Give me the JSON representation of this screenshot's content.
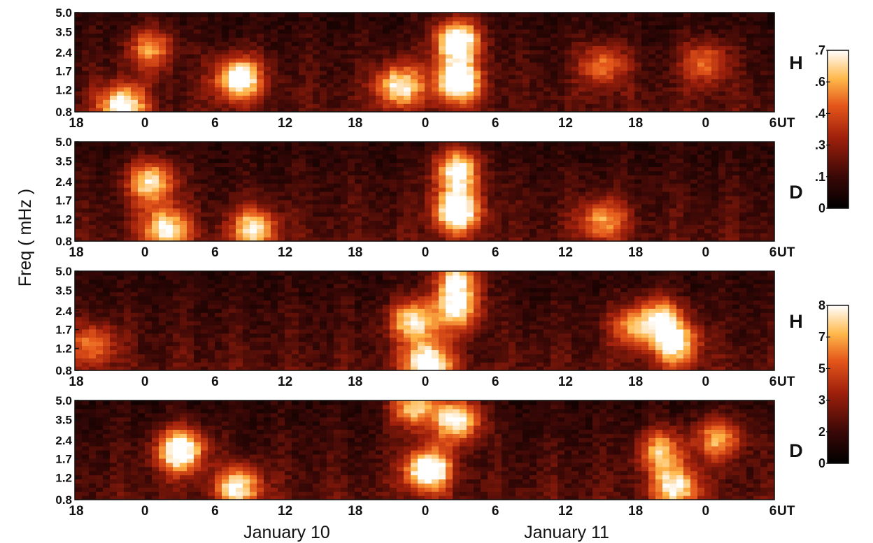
{
  "chart_data": [
    {
      "type": "heatmap",
      "component": "H",
      "x_ticks": [
        "18",
        "0",
        "6",
        "12",
        "18",
        "0",
        "6",
        "12",
        "18",
        "0",
        "6"
      ],
      "x_unit": "UT",
      "y_ticks": [
        "0.8",
        "1.2",
        "1.7",
        "2.4",
        "3.5",
        "5.0"
      ],
      "colorbar": [
        "0",
        ".1",
        ".3",
        ".4",
        ".6",
        ".7"
      ],
      "hotspots": [
        {
          "t": 3,
          "f": 0.9,
          "v": 0.6
        },
        {
          "t": 11,
          "f": 1.5,
          "v": 0.65
        },
        {
          "t": 26,
          "f": 1.4,
          "v": 0.7
        },
        {
          "t": 26,
          "f": 3.0,
          "v": 0.7
        },
        {
          "t": 22,
          "f": 1.3,
          "v": 0.55
        },
        {
          "t": 5,
          "f": 2.6,
          "v": 0.4
        },
        {
          "t": 36,
          "f": 1.9,
          "v": 0.35
        },
        {
          "t": 43,
          "f": 2.0,
          "v": 0.35
        }
      ]
    },
    {
      "type": "heatmap",
      "component": "D",
      "x_ticks": [
        "18",
        "0",
        "6",
        "12",
        "18",
        "0",
        "6",
        "12",
        "18",
        "0",
        "6"
      ],
      "x_unit": "UT",
      "y_ticks": [
        "0.8",
        "1.2",
        "1.7",
        "2.4",
        "3.5",
        "5.0"
      ],
      "colorbar": [
        "0",
        ".1",
        ".3",
        ".4",
        ".6",
        ".7"
      ],
      "hotspots": [
        {
          "t": 5,
          "f": 2.4,
          "v": 0.55
        },
        {
          "t": 6,
          "f": 1.0,
          "v": 0.55
        },
        {
          "t": 12,
          "f": 1.0,
          "v": 0.5
        },
        {
          "t": 26,
          "f": 1.4,
          "v": 0.7
        },
        {
          "t": 26,
          "f": 3.0,
          "v": 0.6
        },
        {
          "t": 36,
          "f": 1.2,
          "v": 0.4
        }
      ]
    },
    {
      "type": "heatmap",
      "component": "H",
      "x_ticks": [
        "18",
        "0",
        "6",
        "12",
        "18",
        "0",
        "6",
        "12",
        "18",
        "0",
        "6"
      ],
      "x_unit": "UT",
      "y_ticks": [
        "0.8",
        "1.2",
        "1.7",
        "2.4",
        "3.5",
        "5.0"
      ],
      "colorbar": [
        "0",
        "2",
        "3",
        "5",
        "7",
        "8"
      ],
      "hotspots": [
        {
          "t": 24,
          "f": 0.9,
          "v": 7.5
        },
        {
          "t": 23,
          "f": 2.0,
          "v": 6
        },
        {
          "t": 26,
          "f": 2.5,
          "v": 6
        },
        {
          "t": 26,
          "f": 4.5,
          "v": 6
        },
        {
          "t": 41,
          "f": 1.3,
          "v": 6
        },
        {
          "t": 40,
          "f": 2.1,
          "v": 5
        },
        {
          "t": 38,
          "f": 1.8,
          "v": 4
        },
        {
          "t": 1,
          "f": 1.3,
          "v": 4
        }
      ]
    },
    {
      "type": "heatmap",
      "component": "D",
      "x_ticks": [
        "18",
        "0",
        "6",
        "12",
        "18",
        "0",
        "6",
        "12",
        "18",
        "0",
        "6"
      ],
      "x_unit": "UT",
      "y_ticks": [
        "0.8",
        "1.2",
        "1.7",
        "2.4",
        "3.5",
        "5.0"
      ],
      "colorbar": [
        "0",
        "2",
        "3",
        "5",
        "7",
        "8"
      ],
      "hotspots": [
        {
          "t": 7,
          "f": 2.0,
          "v": 8
        },
        {
          "t": 11,
          "f": 1.0,
          "v": 6
        },
        {
          "t": 24,
          "f": 1.4,
          "v": 8
        },
        {
          "t": 26,
          "f": 3.5,
          "v": 7
        },
        {
          "t": 23,
          "f": 4.5,
          "v": 6
        },
        {
          "t": 40,
          "f": 2.0,
          "v": 5
        },
        {
          "t": 44,
          "f": 2.5,
          "v": 5
        },
        {
          "t": 41,
          "f": 1.0,
          "v": 6
        }
      ]
    }
  ],
  "y_axis_title": "Freq ( mHz )",
  "date_labels": [
    "January 10",
    "January 11"
  ]
}
